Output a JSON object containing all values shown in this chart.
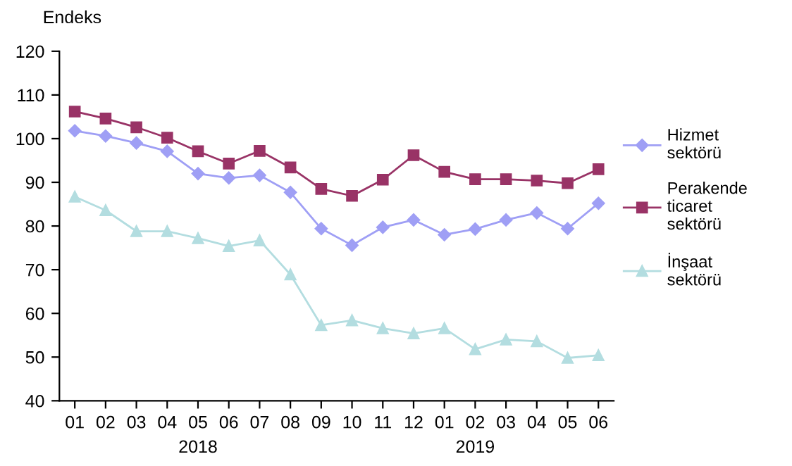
{
  "chart_data": {
    "type": "line",
    "ylabel": "Endeks",
    "categories": [
      "01",
      "02",
      "03",
      "04",
      "05",
      "06",
      "07",
      "08",
      "09",
      "10",
      "11",
      "12",
      "01",
      "02",
      "03",
      "04",
      "05",
      "06"
    ],
    "series": [
      {
        "name": "Hizmet\nsektörü",
        "color": "#9f9ff5",
        "marker": "diamond",
        "values": [
          101.8,
          100.6,
          99.0,
          97.1,
          92.0,
          91.0,
          91.6,
          87.7,
          79.4,
          75.6,
          79.7,
          81.4,
          78.0,
          79.3,
          81.4,
          83.0,
          79.4,
          85.2
        ]
      },
      {
        "name": "Perakende\nticaret\nsektörü",
        "color": "#993366",
        "marker": "square",
        "values": [
          106.2,
          104.6,
          102.6,
          100.2,
          97.1,
          94.3,
          97.2,
          93.4,
          88.5,
          86.9,
          90.6,
          96.2,
          92.4,
          90.7,
          90.7,
          90.4,
          89.8,
          93.0
        ]
      },
      {
        "name": "İnşaat\nsektörü",
        "color": "#b3dde0",
        "marker": "triangle",
        "values": [
          86.7,
          83.6,
          78.8,
          78.8,
          77.2,
          75.4,
          76.7,
          68.9,
          57.3,
          58.4,
          56.6,
          55.4,
          56.6,
          51.8,
          54.0,
          53.6,
          49.8,
          50.4
        ]
      }
    ],
    "ylim": [
      40,
      120
    ],
    "yticks": [
      40,
      50,
      60,
      70,
      80,
      90,
      100,
      110,
      120
    ],
    "annotations": [
      "2018",
      "2019"
    ],
    "grid": false,
    "legend": "right"
  }
}
